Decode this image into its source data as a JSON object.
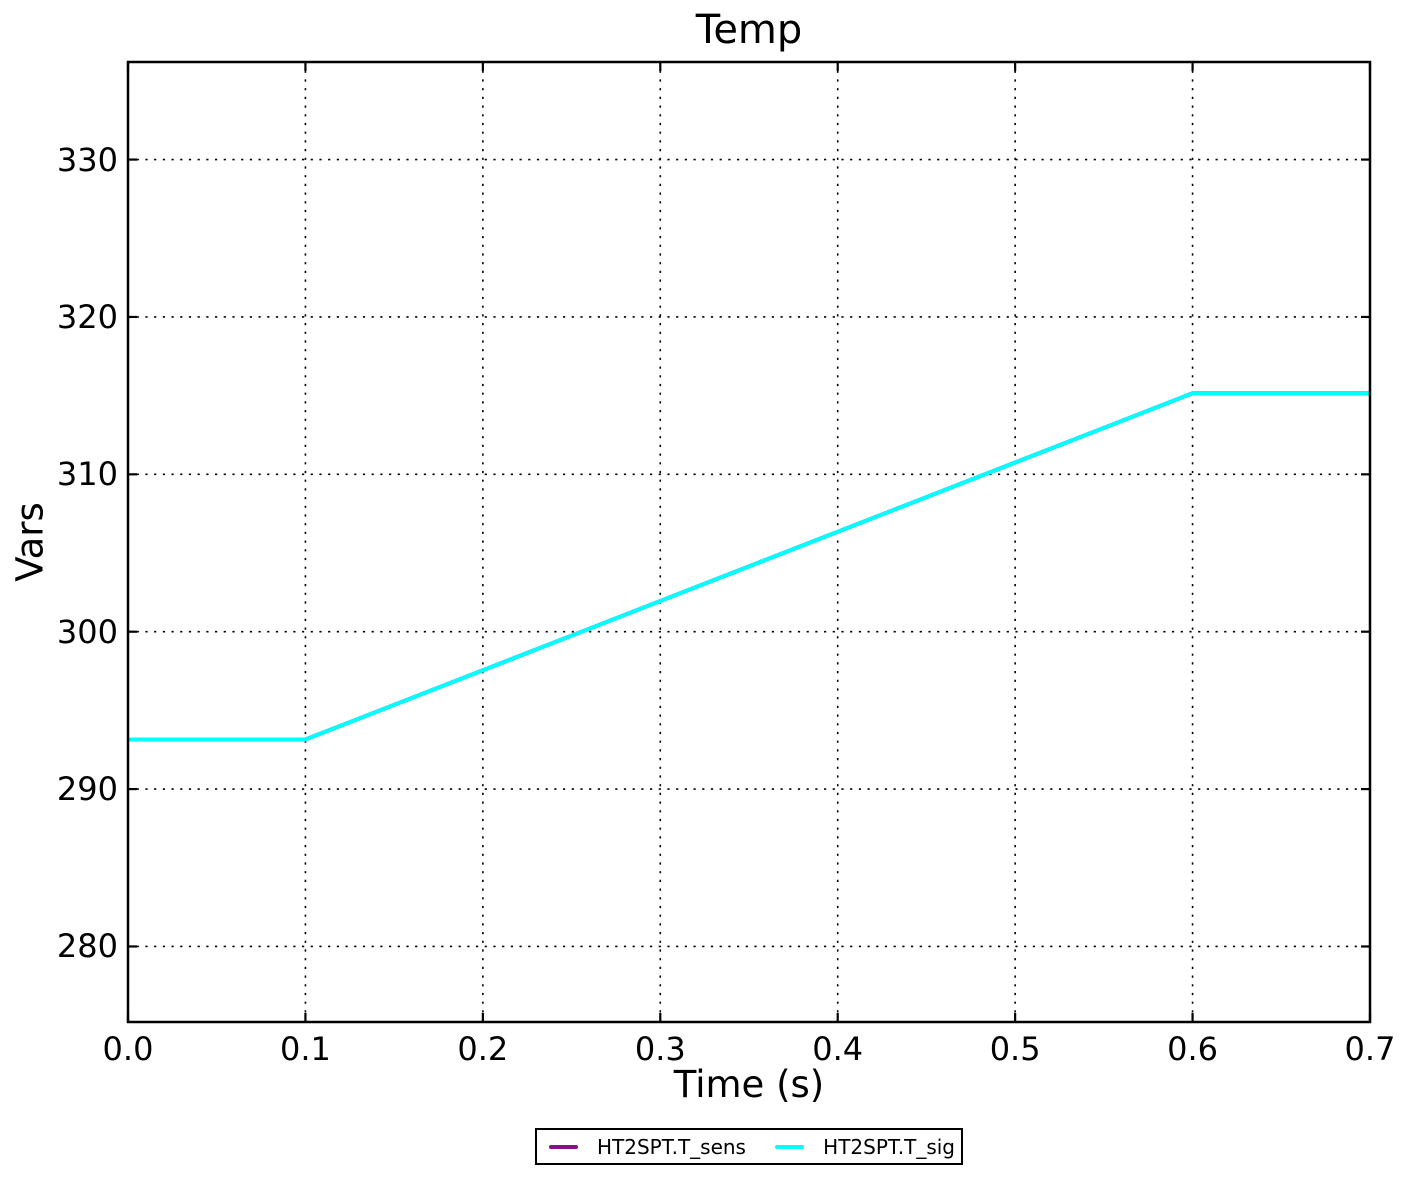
{
  "chart_data": {
    "type": "line",
    "title": "Temp",
    "xlabel": "Time (s)",
    "ylabel": "Vars",
    "xlim": [
      0.0,
      0.7
    ],
    "ylim": [
      275.2,
      336.2
    ],
    "xticks": {
      "values": [
        0.0,
        0.1,
        0.2,
        0.3,
        0.4,
        0.5,
        0.6,
        0.7
      ],
      "labels": [
        "0.0",
        "0.1",
        "0.2",
        "0.3",
        "0.4",
        "0.5",
        "0.6",
        "0.7"
      ]
    },
    "yticks": {
      "values": [
        280,
        290,
        300,
        310,
        320,
        330
      ],
      "labels": [
        "280",
        "290",
        "300",
        "310",
        "320",
        "330"
      ]
    },
    "grid": "dotted",
    "legend_position": "bottom-center",
    "series": [
      {
        "name": "HT2SPT.T_sens",
        "color": "#8C0E8E",
        "points": [
          [
            0.0,
            293.15
          ],
          [
            0.1,
            293.15
          ],
          [
            0.6,
            315.15
          ],
          [
            0.7,
            315.15
          ]
        ]
      },
      {
        "name": "HT2SPT.T_sig",
        "color": "#00FFFF",
        "points": [
          [
            0.0,
            293.15
          ],
          [
            0.1,
            293.15
          ],
          [
            0.6,
            315.15
          ],
          [
            0.7,
            315.15
          ]
        ]
      }
    ]
  },
  "colors": {
    "background": "#ffffff",
    "frame": "#000000",
    "grid": "#000000",
    "text": "#000000"
  }
}
